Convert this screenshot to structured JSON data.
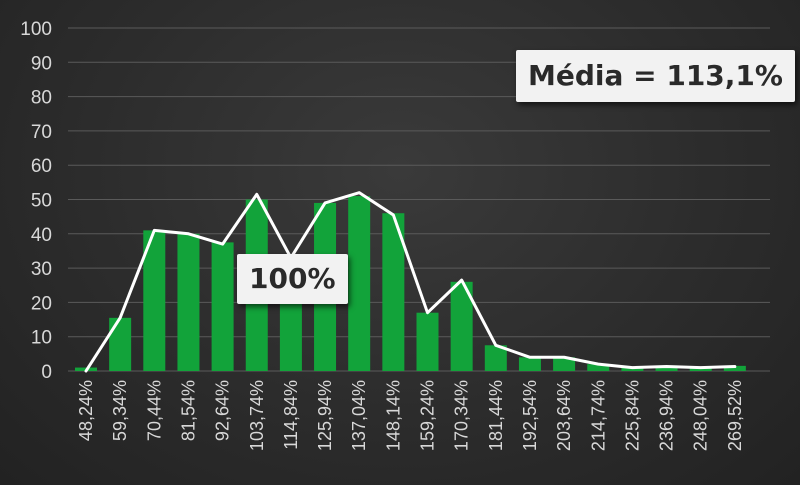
{
  "chart_data": {
    "type": "bar",
    "categories": [
      "48,24%",
      "59,34%",
      "70,44%",
      "81,54%",
      "92,64%",
      "103,74%",
      "114,84%",
      "125,94%",
      "137,04%",
      "148,14%",
      "159,24%",
      "170,34%",
      "181,44%",
      "192,54%",
      "203,64%",
      "214,74%",
      "225,84%",
      "236,94%",
      "248,04%",
      "269,52%"
    ],
    "series": [
      {
        "type": "bar",
        "values": [
          1,
          15.5,
          41,
          40,
          37.5,
          50,
          33,
          49,
          51,
          46,
          17,
          26,
          7.5,
          4,
          4,
          2,
          1,
          1,
          1,
          1.5
        ]
      },
      {
        "type": "line",
        "values": [
          0,
          15.5,
          41,
          40,
          37,
          51.5,
          33,
          49,
          52,
          45.5,
          17,
          26.5,
          7.5,
          4,
          4,
          2,
          1,
          1.3,
          1,
          1.3
        ]
      }
    ],
    "ylim": [
      0,
      100
    ],
    "yticks": [
      0,
      10,
      20,
      30,
      40,
      50,
      60,
      70,
      80,
      90,
      100
    ],
    "grid": true,
    "legend": "none",
    "colors": {
      "bar": "#12a33a",
      "line": "#ffffff",
      "grid": "#5a5a5a",
      "tick_text": "#d8d8d8",
      "callout_bg": "#f2f2f2"
    },
    "annotations": {
      "mean": "Média = 113,1%",
      "reference": "100%"
    }
  }
}
